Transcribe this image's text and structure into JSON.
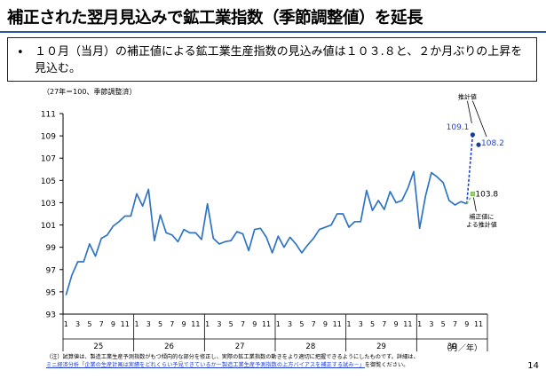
{
  "slide": {
    "title": "補正された翌月見込みで鉱工業指数（季節調整値）を延長",
    "summary_bullet": "•",
    "summary": "１０月（当月）の補正値による鉱工業生産指数の見込み値は１０３.８と、２か月ぶりの上昇を見込む。",
    "page_number": "14"
  },
  "note": {
    "line1": "（注）試算値は、製造工業生産予測指数がもつ傾向的な部分を修正し、実際の鉱工業指数の動きをより適切に把握できるようにしたものです。詳細は、",
    "line2_link": "ミニ経済分析「企業の生産計画は実績をどれくらい予見できているか－製造工業生産予測指数の上方バイアスを補正する試み－」",
    "line2_rest": "を御覧ください。"
  },
  "chart_data": {
    "type": "line",
    "unit_label": "（27年＝100、季節調整済）",
    "x_unit_label": "（月／年）",
    "ylim": [
      93,
      111
    ],
    "yticks": [
      93,
      95,
      97,
      99,
      101,
      103,
      105,
      107,
      109,
      111
    ],
    "month_ticks": [
      "1",
      "3",
      "5",
      "7",
      "9",
      "11"
    ],
    "years": [
      "25",
      "26",
      "27",
      "28",
      "29",
      "30"
    ],
    "series": [
      {
        "values": [
          94.7,
          96.5,
          97.7,
          97.7,
          99.3,
          98.2,
          99.8,
          100.1,
          100.9,
          101.3,
          101.8,
          101.8,
          103.8,
          102.7,
          104.2,
          99.6,
          101.9,
          100.3,
          100.1,
          99.5,
          100.6,
          100.3,
          100.3,
          99.7,
          102.9,
          99.8,
          99.3,
          99.5,
          99.6,
          100.4,
          100.2,
          98.7,
          100.6,
          100.7,
          99.9,
          98.5,
          100.0,
          99.0,
          99.9,
          99.3,
          98.5,
          99.2,
          99.8,
          100.6,
          100.8,
          101.0,
          102.0,
          102.0,
          100.8,
          101.3,
          101.3,
          104.1,
          102.3,
          103.2,
          102.4,
          104.0,
          103.0,
          103.2,
          104.3,
          105.8,
          100.7,
          103.6,
          105.7,
          105.3,
          104.8,
          103.2,
          102.8,
          103.1,
          102.9
        ]
      }
    ],
    "projection": {
      "start_value": 102.9,
      "points": [
        {
          "label": "109.1",
          "value": 109.1,
          "color": "#1f3fd6"
        },
        {
          "label": "108.2",
          "value": 108.2,
          "color": "#1f3fd6"
        },
        {
          "label": "103.8",
          "value": 103.8,
          "color": "#000000"
        }
      ]
    },
    "annotations": {
      "estimate": "推計値",
      "corrected_line1": "補正値に",
      "corrected_line2": "よる推計値"
    },
    "grid": false
  }
}
